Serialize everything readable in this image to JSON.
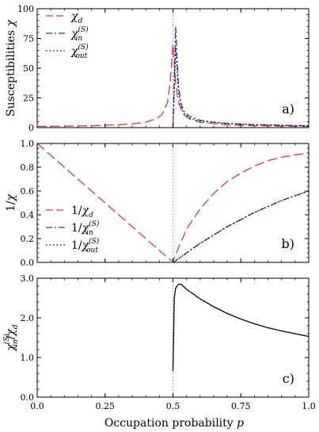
{
  "figure": {
    "xlabel": "Occupation probability",
    "xlabel_var": "p",
    "x_ticks": [
      "0.0",
      "0.25",
      "0.5",
      "0.75",
      "1.0"
    ]
  },
  "chart_data": [
    {
      "type": "line",
      "panel": "a)",
      "ylabel": "Susceptibilities χ",
      "xlim": [
        0,
        1
      ],
      "ylim": [
        0,
        100
      ],
      "y_ticks": [
        "0",
        "25",
        "50",
        "75",
        "100"
      ],
      "critical_p": 0.5,
      "legend_position": "top-left",
      "colors": {
        "d": "#e8363a",
        "in": "#2233cc",
        "out": "#000000"
      },
      "series": [
        {
          "name": "χ_d",
          "sym": "χ",
          "sub": "d",
          "sup": "",
          "style": "dashed",
          "x": [
            0,
            0.1,
            0.2,
            0.3,
            0.35,
            0.4,
            0.44,
            0.46,
            0.48,
            0.49,
            0.495,
            0.5,
            0.505,
            0.51,
            0.52,
            0.54,
            0.56,
            0.6,
            0.7,
            0.8,
            0.9,
            1.0
          ],
          "y": [
            1,
            1.2,
            1.6,
            2.4,
            3.1,
            4.6,
            7.5,
            11,
            21,
            38,
            55,
            70,
            55,
            38,
            21,
            11,
            7.5,
            4.5,
            2.3,
            1.6,
            1.2,
            1.0
          ]
        },
        {
          "name": "χ_in^(S)",
          "sym": "χ",
          "sub": "in",
          "sup": "(S)",
          "style": "dashdot",
          "x": [
            0.5,
            0.505,
            0.51,
            0.515,
            0.52,
            0.53,
            0.54,
            0.56,
            0.6,
            0.65,
            0.7,
            0.8,
            0.9,
            1.0
          ],
          "y": [
            0,
            40,
            85,
            60,
            35,
            20,
            14,
            9.5,
            6.2,
            4.6,
            3.6,
            2.6,
            2.0,
            1.6
          ]
        },
        {
          "name": "χ_out^(S)",
          "sym": "χ",
          "sub": "out",
          "sup": "(S)",
          "style": "dotted",
          "x": [
            0.5,
            0.505,
            0.51,
            0.515,
            0.52,
            0.53,
            0.54,
            0.56,
            0.6,
            0.7,
            0.8,
            1.0
          ],
          "y": [
            0,
            30,
            67,
            50,
            30,
            17,
            12,
            8,
            5.5,
            3.3,
            2.3,
            1.4
          ]
        }
      ]
    },
    {
      "type": "line",
      "panel": "b)",
      "ylabel": "1/χ",
      "xlim": [
        0,
        1
      ],
      "ylim": [
        0,
        1
      ],
      "y_ticks": [
        "0.0",
        "0.2",
        "0.4",
        "0.6",
        "0.8",
        "1.0"
      ],
      "critical_p": 0.5,
      "legend_position": "center-left",
      "series": [
        {
          "name": "1/χ_d",
          "pre": "1/",
          "sym": "χ",
          "sub": "d",
          "sup": "",
          "style": "dashed",
          "x": [
            0,
            0.49,
            0.5,
            0.52,
            0.55,
            0.6,
            0.65,
            0.7,
            0.75,
            0.8,
            0.85,
            0.9,
            0.95,
            1.0
          ],
          "y": [
            1.0,
            0.02,
            0.01,
            0.12,
            0.28,
            0.45,
            0.58,
            0.68,
            0.75,
            0.81,
            0.855,
            0.885,
            0.905,
            0.92
          ]
        },
        {
          "name": "1/χ_in^(S)",
          "pre": "1/",
          "sym": "χ",
          "sub": "in",
          "sup": "(S)",
          "style": "dashdot",
          "x": [
            0.5,
            0.52,
            0.55,
            0.6,
            0.65,
            0.7,
            0.75,
            0.8,
            0.85,
            0.9,
            0.95,
            1.0
          ],
          "y": [
            0.0,
            0.03,
            0.08,
            0.16,
            0.23,
            0.3,
            0.36,
            0.42,
            0.47,
            0.52,
            0.56,
            0.6
          ]
        },
        {
          "name": "1/χ_out^(S)",
          "pre": "1/",
          "sym": "χ",
          "sub": "out",
          "sup": "(S)",
          "style": "dotted",
          "x": [
            0.5,
            0.52,
            0.55,
            0.6,
            0.65,
            0.7,
            0.75,
            0.8,
            0.85,
            0.9,
            0.95,
            1.0
          ],
          "y": [
            0.0,
            0.03,
            0.08,
            0.16,
            0.23,
            0.3,
            0.36,
            0.42,
            0.47,
            0.52,
            0.56,
            0.6
          ]
        }
      ]
    },
    {
      "type": "line",
      "panel": "c)",
      "ylabel": "χ_in^(S)/χ_d",
      "xlim": [
        0,
        1
      ],
      "ylim": [
        0,
        3
      ],
      "y_ticks": [
        "0.0",
        "1.0",
        "2.0",
        "3.0"
      ],
      "critical_p": 0.5,
      "series": [
        {
          "name": "χ_in^(S)/χ_d",
          "style": "solid",
          "x": [
            0.5,
            0.505,
            0.51,
            0.52,
            0.53,
            0.55,
            0.6,
            0.65,
            0.7,
            0.75,
            0.8,
            0.85,
            0.9,
            0.95,
            1.0
          ],
          "y": [
            0.65,
            2.5,
            2.75,
            2.85,
            2.85,
            2.72,
            2.48,
            2.28,
            2.11,
            1.97,
            1.85,
            1.75,
            1.67,
            1.6,
            1.53
          ]
        }
      ]
    }
  ]
}
